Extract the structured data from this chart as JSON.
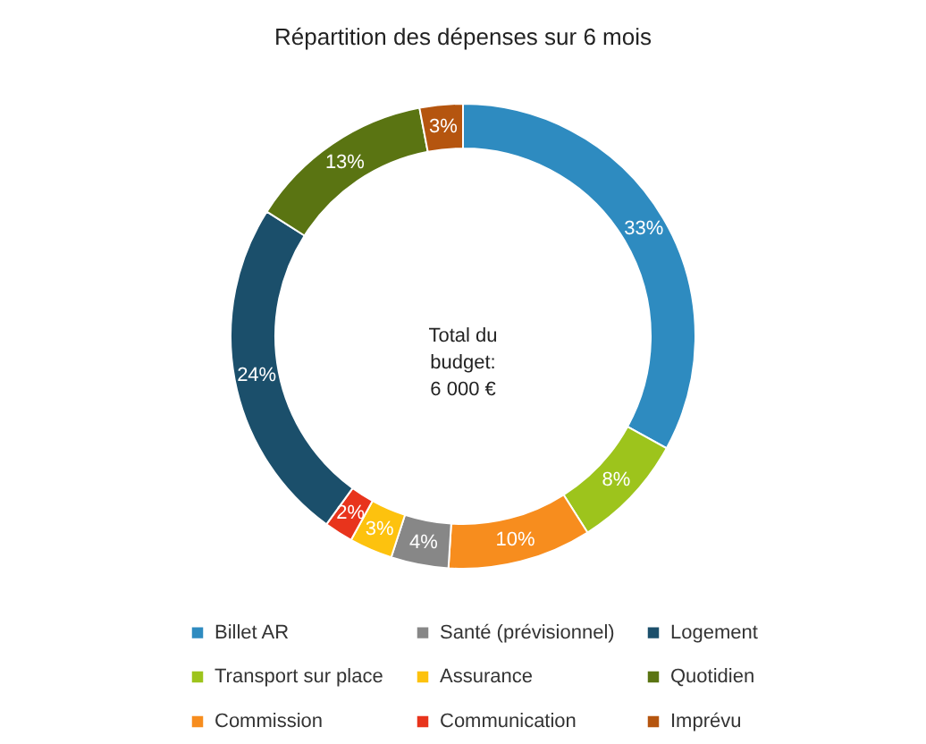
{
  "chart_data": {
    "type": "donut",
    "title": "Répartition des dépenses sur 6 mois",
    "categories": [
      "Billet AR",
      "Transport sur place",
      "Commission",
      "Santé (prévisionnel)",
      "Assurance",
      "Communication",
      "Logement",
      "Quotidien",
      "Imprévu"
    ],
    "values": [
      33,
      8,
      10,
      4,
      3,
      2,
      24,
      13,
      3
    ],
    "colors": [
      "#2e8bc0",
      "#9dc41c",
      "#f78d1e",
      "#878787",
      "#fdc20e",
      "#e8341c",
      "#1b4f6b",
      "#5a7412",
      "#b5550f"
    ],
    "value_labels": [
      "33%",
      "8%",
      "10%",
      "4%",
      "3%",
      "2%",
      "24%",
      "13%",
      "3%"
    ],
    "annotations": [
      "Total du\nbudget:\n6 000 €"
    ],
    "legend": "bottom"
  }
}
